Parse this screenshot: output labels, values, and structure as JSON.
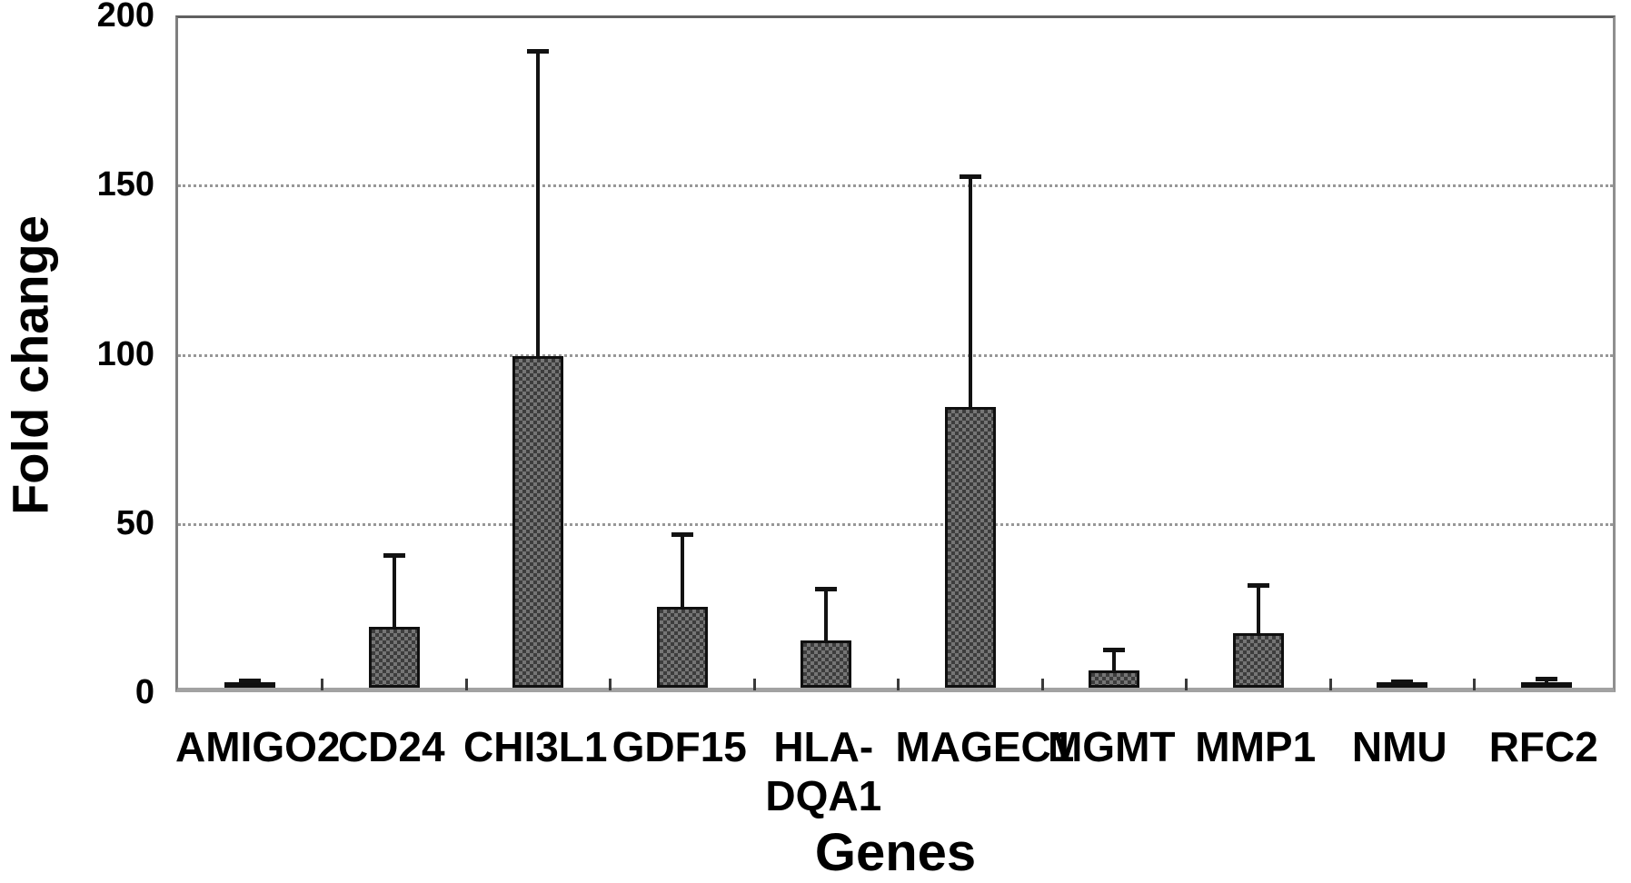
{
  "chart_data": {
    "type": "bar",
    "title": "",
    "xlabel": "Genes",
    "ylabel": "Fold change",
    "ylim": [
      0,
      200
    ],
    "yticks": [
      200,
      150,
      100,
      50,
      0
    ],
    "gridlines_y": [
      150,
      100,
      50
    ],
    "grid_style": "dotted-horizontal",
    "legend": "none",
    "bars": [
      {
        "gene": "AMIGO2",
        "label_lines": [
          "AMIGO2"
        ],
        "value": 1,
        "error_upper": 1
      },
      {
        "gene": "CD24",
        "label_lines": [
          "CD24"
        ],
        "value": 18,
        "error_upper": 21
      },
      {
        "gene": "CHI3L1",
        "label_lines": [
          "CHI3L1"
        ],
        "value": 98,
        "error_upper": 90
      },
      {
        "gene": "GDF15",
        "label_lines": [
          "GDF15"
        ],
        "value": 24,
        "error_upper": 21
      },
      {
        "gene": "HLA-DQA1",
        "label_lines": [
          "HLA-",
          "DQA1"
        ],
        "value": 14,
        "error_upper": 15
      },
      {
        "gene": "MAGEC1",
        "label_lines": [
          "MAGEC1"
        ],
        "value": 83,
        "error_upper": 68
      },
      {
        "gene": "MGMT",
        "label_lines": [
          "MGMT"
        ],
        "value": 5,
        "error_upper": 6
      },
      {
        "gene": "MMP1",
        "label_lines": [
          "MMP1"
        ],
        "value": 16,
        "error_upper": 14
      },
      {
        "gene": "NMU",
        "label_lines": [
          "NMU"
        ],
        "value": 1,
        "error_upper": 0.5
      },
      {
        "gene": "RFC2",
        "label_lines": [
          "RFC2"
        ],
        "value": 1,
        "error_upper": 1.5
      }
    ],
    "colors": {
      "bar_fill_dark": "#3d3d3d",
      "bar_fill_light": "#757575",
      "bar_border": "#101010",
      "error_bar": "#121212",
      "gridline": "#979797",
      "axis": "#8f8f8f",
      "text": "#000000",
      "background": "#ffffff"
    }
  }
}
